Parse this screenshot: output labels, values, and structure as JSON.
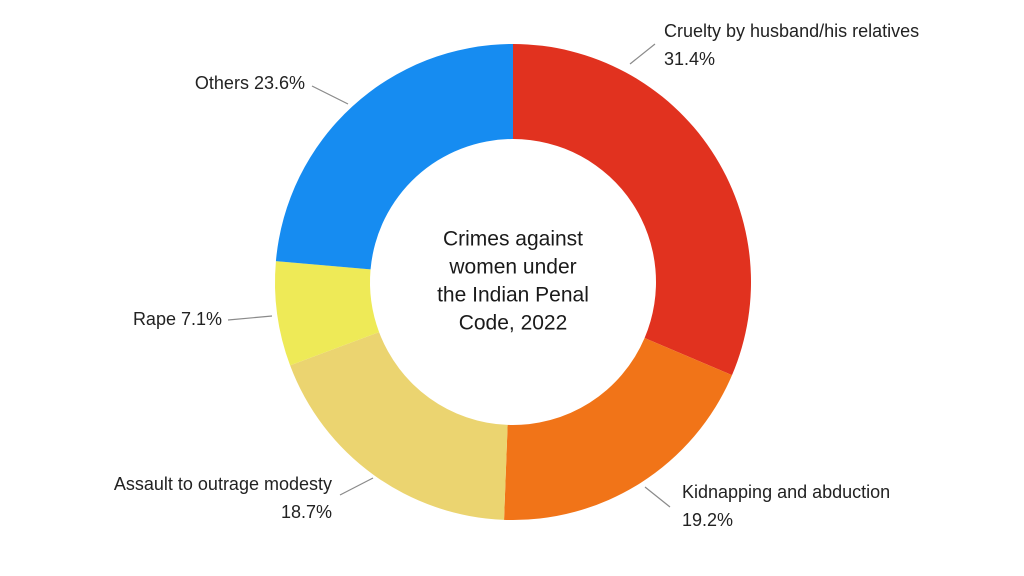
{
  "chart_data": {
    "type": "pie",
    "donut": true,
    "title": [
      "Crimes against",
      "women under",
      "the Indian Penal",
      "Code, 2022"
    ],
    "categories": [
      "Cruelty by husband/his relatives",
      "Kidnapping and abduction",
      "Assault to outrage modesty",
      "Rape",
      "Others"
    ],
    "values": [
      31.4,
      19.2,
      18.7,
      7.1,
      23.6
    ],
    "value_labels": [
      "31.4%",
      "19.2%",
      "18.7%",
      "7.1%",
      "23.6%"
    ],
    "colors": [
      "#e1321f",
      "#f17418",
      "#ebd470",
      "#eeea57",
      "#168cf1"
    ]
  }
}
